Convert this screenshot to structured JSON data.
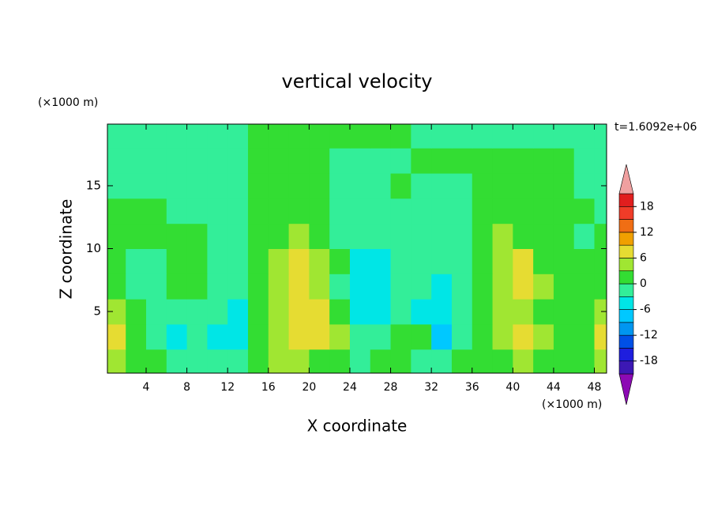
{
  "chart_data": {
    "type": "contour",
    "title": "vertical velocity",
    "xlabel": "X coordinate",
    "ylabel": "Z coordinate",
    "x_unit_label": "(×1000 m)",
    "y_unit_label": "(×1000 m)",
    "time_label": "t=1.6092e+06",
    "xlim": [
      0.2,
      49.2
    ],
    "ylim": [
      0.1,
      19.9
    ],
    "xticks": [
      4,
      8,
      12,
      16,
      20,
      24,
      28,
      32,
      36,
      40,
      44,
      48
    ],
    "yticks": [
      5,
      10,
      15
    ],
    "x": [
      1,
      3,
      5,
      7,
      9,
      11,
      13,
      15,
      17,
      19,
      21,
      23,
      25,
      27,
      29,
      31,
      33,
      35,
      37,
      39,
      41,
      43,
      45,
      47,
      49
    ],
    "z": [
      1,
      3,
      5,
      7,
      9,
      11,
      13,
      15,
      17,
      19
    ],
    "values": [
      [
        4.5,
        1.5,
        1.5,
        -1.5,
        -1.5,
        -1.5,
        -1.5,
        1.5,
        4.5,
        4.5,
        1.5,
        1.5,
        -1.5,
        1.5,
        1.5,
        -1.5,
        -1.5,
        1.5,
        1.5,
        1.5,
        4.5,
        1.5,
        1.5,
        1.5,
        4.5
      ],
      [
        7.5,
        1.5,
        -1.5,
        -4.5,
        -1.5,
        -4.5,
        -4.5,
        1.5,
        4.5,
        7.5,
        7.5,
        4.5,
        -1.5,
        -1.5,
        1.5,
        1.5,
        -7.5,
        -1.5,
        1.5,
        4.5,
        7.5,
        4.5,
        1.5,
        1.5,
        7.5
      ],
      [
        4.5,
        1.5,
        -1.5,
        -1.5,
        -1.5,
        -1.5,
        -4.5,
        1.5,
        4.5,
        7.5,
        7.5,
        1.5,
        -4.5,
        -4.5,
        -1.5,
        -4.5,
        -4.5,
        -1.5,
        1.5,
        4.5,
        4.5,
        1.5,
        1.5,
        1.5,
        4.5
      ],
      [
        1.5,
        -1.5,
        -1.5,
        1.5,
        1.5,
        -1.5,
        -1.5,
        1.5,
        4.5,
        7.5,
        4.5,
        -1.5,
        -4.5,
        -4.5,
        -1.5,
        -1.5,
        -4.5,
        -1.5,
        1.5,
        4.5,
        7.5,
        4.5,
        1.5,
        1.5,
        1.5
      ],
      [
        1.5,
        -1.5,
        -1.5,
        1.5,
        1.5,
        -1.5,
        -1.5,
        1.5,
        4.5,
        7.5,
        4.5,
        1.5,
        -4.5,
        -4.5,
        -1.5,
        -1.5,
        -1.5,
        -1.5,
        1.5,
        4.5,
        7.5,
        1.5,
        1.5,
        1.5,
        1.5
      ],
      [
        1.5,
        1.5,
        1.5,
        1.5,
        1.5,
        -1.5,
        -1.5,
        1.5,
        1.5,
        4.5,
        1.5,
        -1.5,
        -1.5,
        -1.5,
        -1.5,
        -1.5,
        -1.5,
        -1.5,
        1.5,
        4.5,
        1.5,
        1.5,
        1.5,
        -1.5,
        1.5
      ],
      [
        1.5,
        1.5,
        1.5,
        -1.5,
        -1.5,
        -1.5,
        -1.5,
        1.5,
        1.5,
        1.5,
        1.5,
        -1.5,
        -1.5,
        -1.5,
        -1.5,
        -1.5,
        -1.5,
        -1.5,
        1.5,
        1.5,
        1.5,
        1.5,
        1.5,
        1.5,
        -1.5
      ],
      [
        -1.5,
        -1.5,
        -1.5,
        -1.5,
        -1.5,
        -1.5,
        -1.5,
        1.5,
        1.5,
        1.5,
        1.5,
        -1.5,
        -1.5,
        -1.5,
        1.5,
        -1.5,
        -1.5,
        -1.5,
        1.5,
        1.5,
        1.5,
        1.5,
        1.5,
        -1.5,
        -1.5
      ],
      [
        -1.5,
        -1.5,
        -1.5,
        -1.5,
        -1.5,
        -1.5,
        -1.5,
        1.5,
        1.5,
        1.5,
        1.5,
        -1.5,
        -1.5,
        -1.5,
        -1.5,
        1.5,
        1.5,
        1.5,
        1.5,
        1.5,
        1.5,
        1.5,
        1.5,
        -1.5,
        -1.5
      ],
      [
        -1.5,
        -1.5,
        -1.5,
        -1.5,
        -1.5,
        -1.5,
        -1.5,
        1.5,
        1.5,
        1.5,
        1.5,
        1.5,
        1.5,
        1.5,
        1.5,
        -1.5,
        -1.5,
        -1.5,
        -1.5,
        -1.5,
        -1.5,
        -1.5,
        -1.5,
        -1.5,
        -1.5
      ]
    ],
    "colorbar": {
      "levels": [
        -21,
        -18,
        -15,
        -12,
        -9,
        -6,
        -3,
        0,
        3,
        6,
        9,
        12,
        15,
        18,
        21
      ],
      "colors": [
        "#8c0ab4",
        "#3c18b4",
        "#1e1ede",
        "#0050e6",
        "#0096f0",
        "#00c8ff",
        "#00e6e6",
        "#33ee99",
        "#33dd33",
        "#a0e632",
        "#e6dc32",
        "#f0a000",
        "#f06e14",
        "#f03c28",
        "#e11e1e",
        "#f0a0a0"
      ],
      "ticks": [
        -18,
        -12,
        -6,
        0,
        6,
        12,
        18
      ]
    }
  }
}
